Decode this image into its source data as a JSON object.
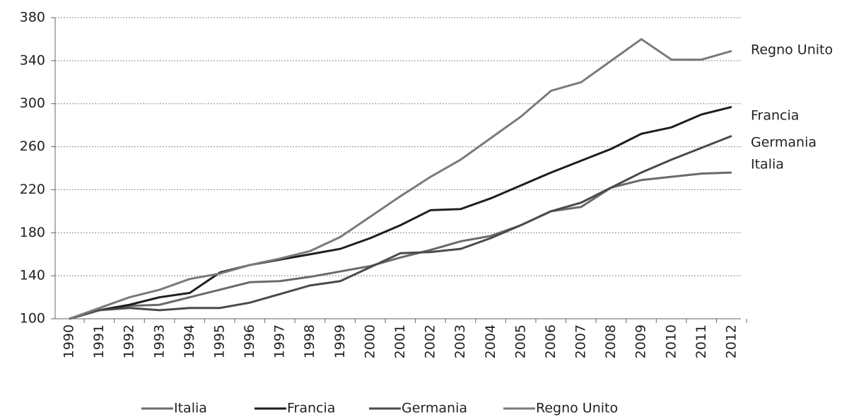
{
  "chart_data": {
    "type": "line",
    "categories": [
      "1990",
      "1991",
      "1992",
      "1993",
      "1994",
      "1995",
      "1996",
      "1997",
      "1998",
      "1999",
      "2000",
      "2001",
      "2002",
      "2003",
      "2004",
      "2005",
      "2006",
      "2007",
      "2008",
      "2009",
      "2010",
      "2011",
      "2012"
    ],
    "series": [
      {
        "name": "Italia",
        "color": "#6a6a6a",
        "values": [
          100,
          108,
          112,
          113,
          120,
          127,
          134,
          135,
          139,
          144,
          149,
          157,
          164,
          172,
          177,
          187,
          200,
          204,
          222,
          229,
          232,
          235,
          236
        ]
      },
      {
        "name": "Francia",
        "color": "#1e1e1e",
        "values": [
          100,
          108,
          113,
          120,
          124,
          143,
          150,
          155,
          160,
          165,
          175,
          187,
          201,
          202,
          212,
          224,
          236,
          247,
          258,
          272,
          278,
          290,
          297
        ]
      },
      {
        "name": "Germania",
        "color": "#4a4a4a",
        "values": [
          100,
          108,
          110,
          108,
          110,
          110,
          115,
          123,
          131,
          135,
          148,
          161,
          162,
          165,
          175,
          187,
          200,
          208,
          222,
          236,
          248,
          259,
          270
        ]
      },
      {
        "name": "Regno Unito",
        "color": "#7a7a7a",
        "values": [
          100,
          110,
          120,
          127,
          137,
          142,
          150,
          156,
          163,
          176,
          195,
          214,
          232,
          248,
          268,
          288,
          312,
          320,
          340,
          360,
          341,
          341,
          349
        ]
      }
    ],
    "annotations": [
      "Regno Unito",
      "Francia",
      "Germania",
      "Italia"
    ],
    "ylim": [
      100,
      380
    ],
    "yticks": [
      100,
      140,
      180,
      220,
      260,
      300,
      340,
      380
    ],
    "grid": true,
    "legend": "bottom"
  }
}
